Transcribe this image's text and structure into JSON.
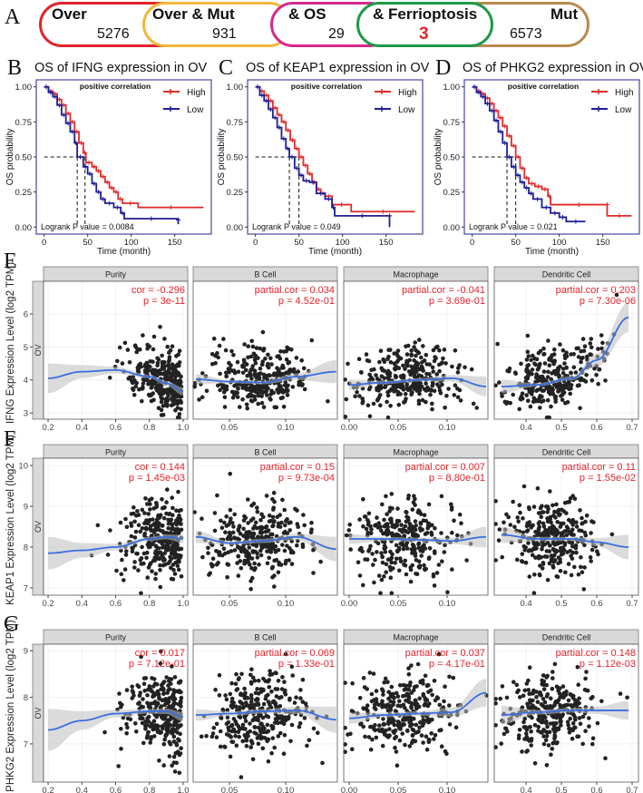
{
  "panel_a": {
    "letter": "A",
    "colors": {
      "over": "#e4232a",
      "over_mut": "#f3b73b",
      "os": "#d52a8e",
      "ferroptosis": "#1e9a49",
      "mut": "#b98a50",
      "highlight": "#e4232a"
    },
    "sets": [
      {
        "label": "Over",
        "count": "5276"
      },
      {
        "label": "Over & Mut",
        "count": "931"
      },
      {
        "label": "& OS",
        "count": "29"
      },
      {
        "label": "& Ferrioptosis",
        "count": "3"
      },
      {
        "label": "Mut",
        "count": "6573"
      }
    ]
  },
  "chart_data": [
    {
      "type": "line",
      "subtype": "kaplan-meier",
      "axis": {
        "xlabel": "Time (month)",
        "ylabel": "OS probability",
        "xlim": [
          -9,
          192
        ],
        "ylim": [
          -0.05,
          1.05
        ],
        "xticks": [
          0,
          50,
          100,
          150
        ],
        "xtick_labels": [
          "0",
          "50",
          "100",
          "150"
        ],
        "yticks": [
          0,
          0.25,
          0.5,
          0.75,
          1
        ],
        "ytick_labels": [
          "0.00",
          "0.25",
          "0.50",
          "0.75",
          "1.00"
        ]
      },
      "colors": {
        "high": "#e02a2a",
        "low": "#1e1e94",
        "frame": "#5555a8"
      },
      "legend": {
        "high": "High",
        "low": "Low",
        "placement": "top-right"
      },
      "panels": [
        {
          "letter": "B",
          "title": "OS of IFNG expression in OV",
          "note": "positive correlation",
          "logrank": "Logrank P value = 0.0084",
          "medians": [
            38,
            47
          ],
          "high": [
            [
              0,
              1
            ],
            [
              5,
              0.97
            ],
            [
              10,
              0.95
            ],
            [
              15,
              0.91
            ],
            [
              20,
              0.87
            ],
            [
              25,
              0.81
            ],
            [
              30,
              0.75
            ],
            [
              35,
              0.68
            ],
            [
              40,
              0.6
            ],
            [
              45,
              0.53
            ],
            [
              48,
              0.46
            ],
            [
              55,
              0.43
            ],
            [
              60,
              0.4
            ],
            [
              65,
              0.36
            ],
            [
              70,
              0.32
            ],
            [
              75,
              0.28
            ],
            [
              80,
              0.25
            ],
            [
              85,
              0.2
            ],
            [
              90,
              0.17
            ],
            [
              108,
              0.14
            ],
            [
              183,
              0.14
            ]
          ],
          "low": [
            [
              0,
              1
            ],
            [
              5,
              0.96
            ],
            [
              10,
              0.93
            ],
            [
              15,
              0.87
            ],
            [
              20,
              0.8
            ],
            [
              25,
              0.74
            ],
            [
              30,
              0.68
            ],
            [
              35,
              0.6
            ],
            [
              38,
              0.5
            ],
            [
              45,
              0.43
            ],
            [
              50,
              0.38
            ],
            [
              55,
              0.31
            ],
            [
              60,
              0.25
            ],
            [
              65,
              0.2
            ],
            [
              70,
              0.17
            ],
            [
              80,
              0.14
            ],
            [
              88,
              0.1
            ],
            [
              92,
              0.06
            ],
            [
              154,
              0.05
            ],
            [
              154,
              0.02
            ]
          ]
        },
        {
          "letter": "C",
          "title": "OS of KEAP1 expression in OV",
          "note": "positive correlation",
          "logrank": "Logrank P value = 0.049",
          "medians": [
            39,
            50
          ],
          "high": [
            [
              0,
              1
            ],
            [
              5,
              0.97
            ],
            [
              10,
              0.94
            ],
            [
              15,
              0.9
            ],
            [
              20,
              0.85
            ],
            [
              25,
              0.8
            ],
            [
              30,
              0.75
            ],
            [
              35,
              0.69
            ],
            [
              40,
              0.62
            ],
            [
              45,
              0.56
            ],
            [
              50,
              0.5
            ],
            [
              55,
              0.44
            ],
            [
              60,
              0.38
            ],
            [
              65,
              0.32
            ],
            [
              70,
              0.27
            ],
            [
              75,
              0.24
            ],
            [
              80,
              0.22
            ],
            [
              88,
              0.16
            ],
            [
              110,
              0.11
            ],
            [
              183,
              0.11
            ]
          ],
          "low": [
            [
              0,
              1
            ],
            [
              5,
              0.94
            ],
            [
              10,
              0.9
            ],
            [
              15,
              0.84
            ],
            [
              20,
              0.78
            ],
            [
              25,
              0.71
            ],
            [
              30,
              0.63
            ],
            [
              35,
              0.56
            ],
            [
              39,
              0.5
            ],
            [
              45,
              0.42
            ],
            [
              50,
              0.37
            ],
            [
              55,
              0.33
            ],
            [
              62,
              0.32
            ],
            [
              70,
              0.24
            ],
            [
              80,
              0.2
            ],
            [
              88,
              0.14
            ],
            [
              91,
              0.08
            ],
            [
              154,
              0.08
            ],
            [
              154,
              0.0
            ]
          ]
        },
        {
          "letter": "D",
          "title": "OS of PHKG2 expression in OV",
          "note": "positive correlation",
          "logrank": "Logrank P value = 0.021",
          "medians": [
            40,
            50
          ],
          "high": [
            [
              0,
              1
            ],
            [
              5,
              0.97
            ],
            [
              10,
              0.95
            ],
            [
              15,
              0.92
            ],
            [
              20,
              0.88
            ],
            [
              25,
              0.83
            ],
            [
              30,
              0.78
            ],
            [
              35,
              0.72
            ],
            [
              40,
              0.65
            ],
            [
              45,
              0.58
            ],
            [
              50,
              0.5
            ],
            [
              55,
              0.42
            ],
            [
              60,
              0.35
            ],
            [
              65,
              0.31
            ],
            [
              72,
              0.29
            ],
            [
              80,
              0.27
            ],
            [
              87,
              0.22
            ],
            [
              90,
              0.16
            ],
            [
              155,
              0.16
            ],
            [
              155,
              0.08
            ],
            [
              183,
              0.08
            ]
          ],
          "low": [
            [
              0,
              1
            ],
            [
              5,
              0.96
            ],
            [
              10,
              0.93
            ],
            [
              15,
              0.88
            ],
            [
              20,
              0.83
            ],
            [
              25,
              0.76
            ],
            [
              30,
              0.68
            ],
            [
              35,
              0.6
            ],
            [
              40,
              0.5
            ],
            [
              45,
              0.43
            ],
            [
              50,
              0.37
            ],
            [
              55,
              0.32
            ],
            [
              60,
              0.28
            ],
            [
              65,
              0.24
            ],
            [
              70,
              0.2
            ],
            [
              80,
              0.14
            ],
            [
              90,
              0.1
            ],
            [
              100,
              0.07
            ],
            [
              108,
              0.04
            ],
            [
              130,
              0.04
            ]
          ]
        }
      ]
    },
    {
      "type": "scatter",
      "subtype": "faceted scatter with loess smooth",
      "colors": {
        "point": "#222222",
        "smooth": "#3a6fe0",
        "band": "#bdbdbd",
        "stat": "#e4232a",
        "strip": "#d9d9d9"
      },
      "columns": [
        {
          "cell": "Purity",
          "xlim": [
            0.173,
            1.027
          ],
          "xticks": [
            0.2,
            0.4,
            0.6,
            0.8,
            1.0
          ],
          "xtick_labels": [
            "0.2",
            "0.4",
            "0.6",
            "0.8",
            "1.0"
          ],
          "x_mean": 0.82,
          "x_sd": 0.12,
          "smooth_x": [
            0.2,
            0.4,
            0.6,
            0.8,
            0.9,
            1.0
          ]
        },
        {
          "cell": "B Cell",
          "xlim": [
            0.0177,
            0.146
          ],
          "xticks": [
            0.05,
            0.1
          ],
          "xtick_labels": [
            "0.05",
            "0.10"
          ],
          "x_mean": 0.075,
          "x_sd": 0.022,
          "smooth_x": [
            0.02,
            0.05,
            0.08,
            0.11,
            0.145
          ]
        },
        {
          "cell": "Macrophage",
          "xlim": [
            -0.0056,
            0.1417
          ],
          "xticks": [
            0.0,
            0.05,
            0.1
          ],
          "xtick_labels": [
            "0.00",
            "0.05",
            "0.10"
          ],
          "x_mean": 0.058,
          "x_sd": 0.026,
          "smooth_x": [
            0.0,
            0.035,
            0.07,
            0.105,
            0.14
          ]
        },
        {
          "cell": "Dendritic Cell",
          "xlim": [
            0.31,
            0.718
          ],
          "xticks": [
            0.4,
            0.5,
            0.6,
            0.7
          ],
          "xtick_labels": [
            "0.4",
            "0.5",
            "0.6",
            "0.7"
          ],
          "x_mean": 0.47,
          "x_sd": 0.065,
          "smooth_x": [
            0.33,
            0.43,
            0.53,
            0.6,
            0.69
          ]
        }
      ],
      "n_points_per_panel": 300,
      "rows": [
        {
          "letter": "E",
          "ylabel": "IFNG Expression Level (log2 TPM)",
          "strip": "OV",
          "ylim": [
            2.81,
            6.99
          ],
          "yticks": [
            3,
            4,
            5,
            6
          ],
          "ytick_labels": [
            "3",
            "4",
            "5",
            "6"
          ],
          "y_sd": 0.55,
          "panels": [
            {
              "stat1": "cor = -0.296",
              "stat2": "p = 3e-11",
              "smooth": [
                4.05,
                4.25,
                4.3,
                4.1,
                3.9,
                3.65
              ],
              "se": [
                0.45,
                0.2,
                0.1,
                0.05,
                0.07,
                0.12
              ]
            },
            {
              "stat1": "partial.cor = 0.034",
              "stat2": "p = 4.52e-01",
              "smooth": [
                4.02,
                3.95,
                3.92,
                4.1,
                4.25
              ],
              "se": [
                0.15,
                0.05,
                0.05,
                0.1,
                0.35
              ]
            },
            {
              "stat1": "partial.cor = -0.041",
              "stat2": "p = 3.69e-01",
              "smooth": [
                3.85,
                3.92,
                4.0,
                4.05,
                3.8
              ],
              "se": [
                0.15,
                0.05,
                0.05,
                0.1,
                0.3
              ]
            },
            {
              "stat1": "partial.cor = 0.203",
              "stat2": "p = 7.30e-06",
              "smooth": [
                3.8,
                3.85,
                4.05,
                4.6,
                5.9
              ],
              "se": [
                0.2,
                0.05,
                0.06,
                0.2,
                0.45
              ]
            }
          ]
        },
        {
          "letter": "F",
          "ylabel": "KEAP1 Expression Level (log2 TPM)",
          "strip": "OV",
          "ylim": [
            6.82,
            10.18
          ],
          "yticks": [
            7,
            8,
            9,
            10
          ],
          "ytick_labels": [
            "7",
            "8",
            "9",
            "10"
          ],
          "y_sd": 0.45,
          "panels": [
            {
              "stat1": "cor = 0.144",
              "stat2": "p = 1.45e-03",
              "smooth": [
                7.85,
                7.92,
                8.0,
                8.2,
                8.25,
                8.2
              ],
              "se": [
                0.4,
                0.18,
                0.08,
                0.05,
                0.06,
                0.1
              ]
            },
            {
              "stat1": "partial.cor = 0.15",
              "stat2": "p = 9.73e-04",
              "smooth": [
                8.25,
                8.1,
                8.15,
                8.25,
                7.95
              ],
              "se": [
                0.15,
                0.05,
                0.05,
                0.08,
                0.3
              ]
            },
            {
              "stat1": "partial.cor = 0.007",
              "stat2": "p = 8.80e-01",
              "smooth": [
                8.2,
                8.2,
                8.18,
                8.15,
                8.25
              ],
              "se": [
                0.12,
                0.05,
                0.05,
                0.08,
                0.25
              ]
            },
            {
              "stat1": "partial.cor = 0.11",
              "stat2": "p = 1.55e-02",
              "smooth": [
                8.3,
                8.2,
                8.2,
                8.12,
                8.0
              ],
              "se": [
                0.2,
                0.05,
                0.05,
                0.1,
                0.3
              ]
            }
          ]
        },
        {
          "letter": "G",
          "ylabel": "PHKG2 Expression Level (log2 TPM)",
          "strip": "OV",
          "ylim": [
            6.18,
            9.14
          ],
          "yticks": [
            7,
            8,
            9
          ],
          "ytick_labels": [
            "7",
            "8",
            "9"
          ],
          "y_sd": 0.42,
          "panels": [
            {
              "stat1": "cor = 0.017",
              "stat2": "p = 7.12e-01",
              "smooth": [
                7.3,
                7.5,
                7.65,
                7.7,
                7.7,
                7.58
              ],
              "se": [
                0.45,
                0.2,
                0.08,
                0.05,
                0.06,
                0.1
              ]
            },
            {
              "stat1": "partial.cor = 0.069",
              "stat2": "p = 1.33e-01",
              "smooth": [
                7.62,
                7.65,
                7.7,
                7.72,
                7.52
              ],
              "se": [
                0.12,
                0.05,
                0.05,
                0.08,
                0.28
              ]
            },
            {
              "stat1": "partial.cor = 0.037",
              "stat2": "p = 4.17e-01",
              "smooth": [
                7.55,
                7.62,
                7.65,
                7.68,
                8.1
              ],
              "se": [
                0.12,
                0.05,
                0.05,
                0.1,
                0.3
              ]
            },
            {
              "stat1": "partial.cor = 0.148",
              "stat2": "p = 1.12e-03",
              "smooth": [
                7.62,
                7.68,
                7.72,
                7.72,
                7.72
              ],
              "se": [
                0.2,
                0.05,
                0.05,
                0.08,
                0.2
              ]
            }
          ]
        }
      ]
    }
  ]
}
